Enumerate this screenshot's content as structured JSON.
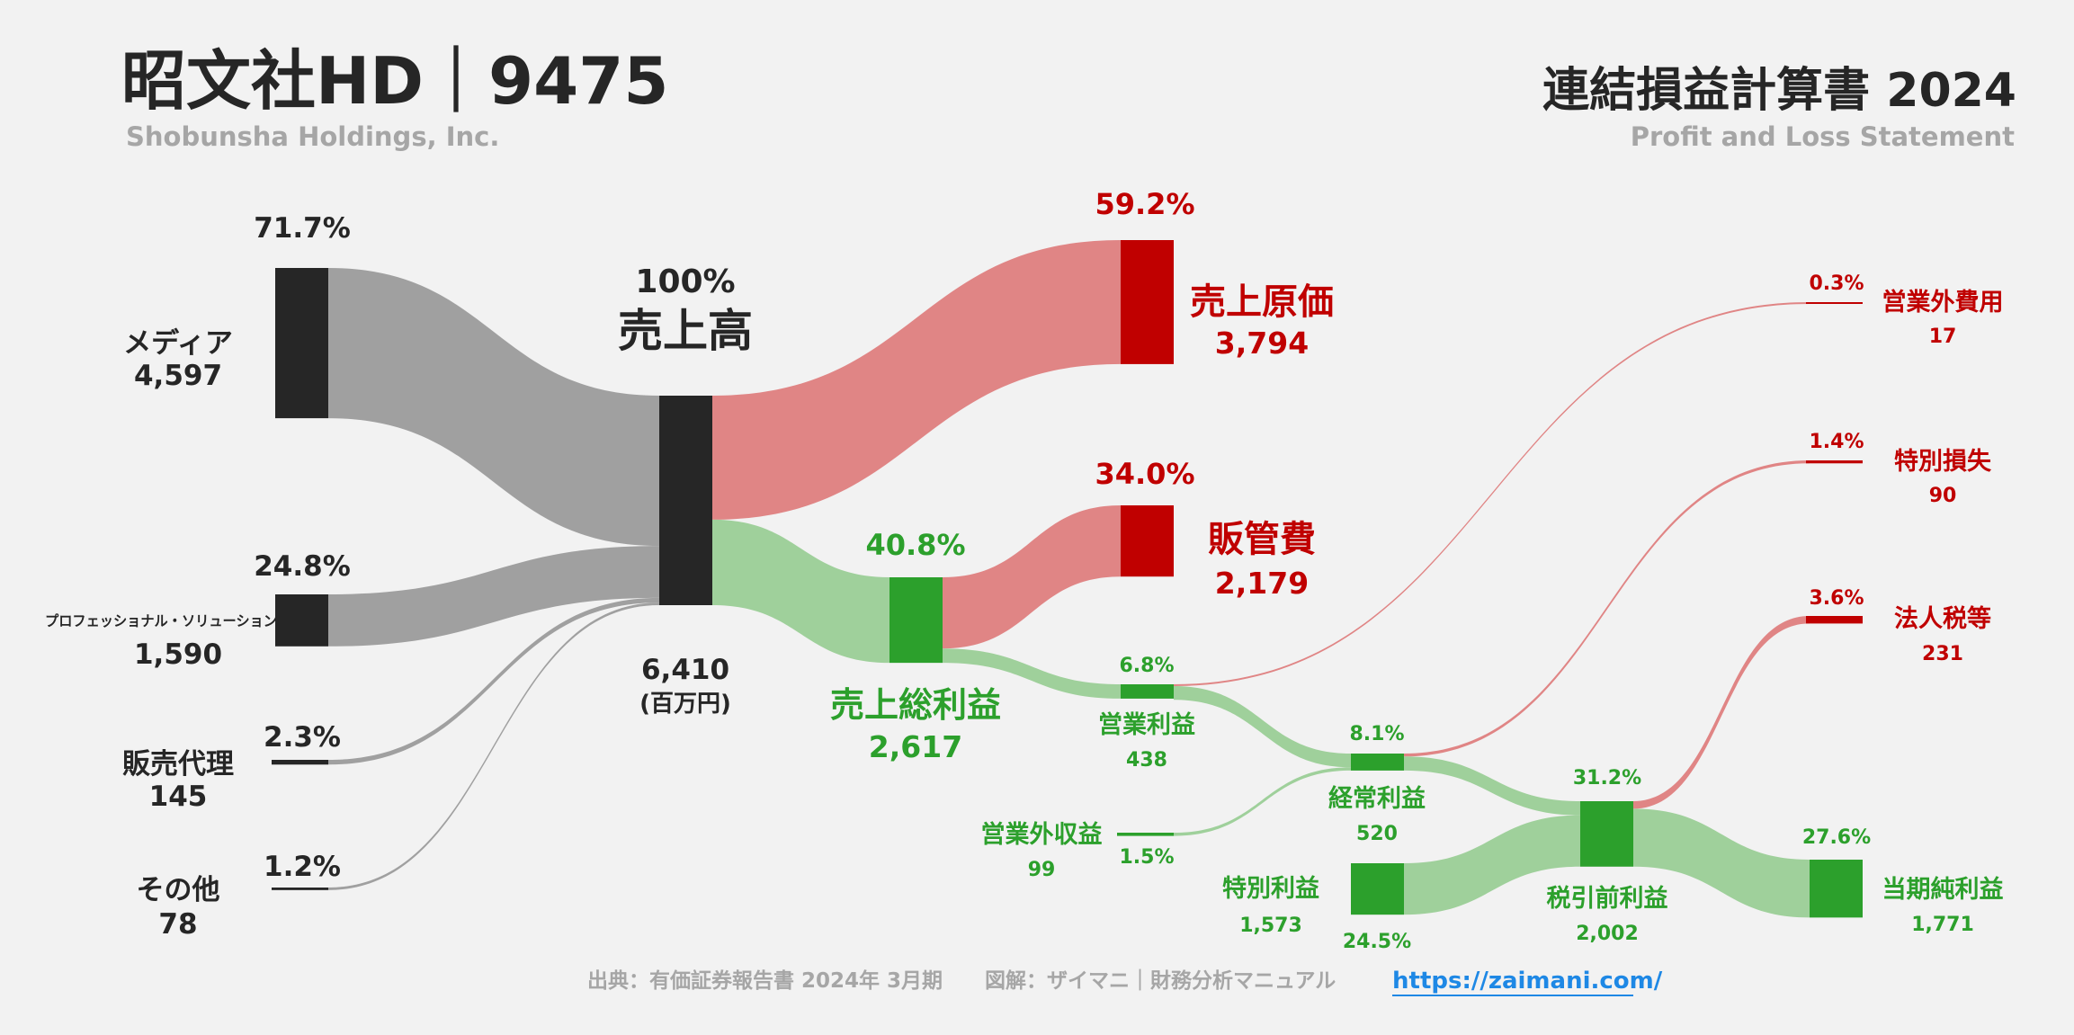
{
  "header": {
    "title": "昭文社HD｜9475",
    "subtitle": "Shobunsha Holdings, Inc.",
    "report_title": "連結損益計算書 2024",
    "report_subtitle": "Profit and Loss Statement"
  },
  "footer": {
    "source": "出典：有価証券報告書 2024年 3月期",
    "credit": "図解：ザイマニ｜財務分析マニュアル",
    "url": "https://zaimani.com/"
  },
  "colors": {
    "dark": "#262626",
    "grey_flow": "#a0a0a0",
    "red": "#c00000",
    "red_flow": "#e08585",
    "green": "#2ca02c",
    "green_flow": "#9fd09b"
  },
  "chart_data": {
    "type": "sankey",
    "unit": "(百万円)",
    "nodes": [
      {
        "id": "media",
        "label": "メディア",
        "value": "4,597",
        "pct": "71.7%",
        "color": "dark"
      },
      {
        "id": "pro",
        "label": "プロフェッショナル・ソリューション",
        "value": "1,590",
        "pct": "24.8%",
        "color": "dark"
      },
      {
        "id": "agency",
        "label": "販売代理",
        "value": "145",
        "pct": "2.3%",
        "color": "dark"
      },
      {
        "id": "other",
        "label": "その他",
        "value": "78",
        "pct": "1.2%",
        "color": "dark"
      },
      {
        "id": "revenue",
        "label": "売上高",
        "value": "6,410",
        "pct": "100%",
        "color": "dark"
      },
      {
        "id": "cogs",
        "label": "売上原価",
        "value": "3,794",
        "pct": "59.2%",
        "color": "red"
      },
      {
        "id": "gross",
        "label": "売上総利益",
        "value": "2,617",
        "pct": "40.8%",
        "color": "green"
      },
      {
        "id": "sga",
        "label": "販管費",
        "value": "2,179",
        "pct": "34.0%",
        "color": "red"
      },
      {
        "id": "op",
        "label": "営業利益",
        "value": "438",
        "pct": "6.8%",
        "color": "green"
      },
      {
        "id": "nonop_inc",
        "label": "営業外収益",
        "value": "99",
        "pct": "1.5%",
        "color": "green"
      },
      {
        "id": "nonop_exp",
        "label": "営業外費用",
        "value": "17",
        "pct": "0.3%",
        "color": "red"
      },
      {
        "id": "ordinary",
        "label": "経常利益",
        "value": "520",
        "pct": "8.1%",
        "color": "green"
      },
      {
        "id": "ext_loss",
        "label": "特別損失",
        "value": "90",
        "pct": "1.4%",
        "color": "red"
      },
      {
        "id": "ext_gain",
        "label": "特別利益",
        "value": "1,573",
        "pct": "24.5%",
        "color": "green"
      },
      {
        "id": "pretax",
        "label": "税引前利益",
        "value": "2,002",
        "pct": "31.2%",
        "color": "green"
      },
      {
        "id": "tax",
        "label": "法人税等",
        "value": "231",
        "pct": "3.6%",
        "color": "red"
      },
      {
        "id": "net",
        "label": "当期純利益",
        "value": "1,771",
        "pct": "27.6%",
        "color": "green"
      }
    ],
    "links": [
      {
        "from": "media",
        "to": "revenue",
        "value": 4597
      },
      {
        "from": "pro",
        "to": "revenue",
        "value": 1590
      },
      {
        "from": "agency",
        "to": "revenue",
        "value": 145
      },
      {
        "from": "other",
        "to": "revenue",
        "value": 78
      },
      {
        "from": "revenue",
        "to": "cogs",
        "value": 3794
      },
      {
        "from": "revenue",
        "to": "gross",
        "value": 2617
      },
      {
        "from": "gross",
        "to": "sga",
        "value": 2179
      },
      {
        "from": "gross",
        "to": "op",
        "value": 438
      },
      {
        "from": "op",
        "to": "nonop_exp",
        "value": 17
      },
      {
        "from": "op",
        "to": "ordinary",
        "value": 421
      },
      {
        "from": "nonop_inc",
        "to": "ordinary",
        "value": 99
      },
      {
        "from": "ordinary",
        "to": "ext_loss",
        "value": 90
      },
      {
        "from": "ordinary",
        "to": "pretax",
        "value": 430
      },
      {
        "from": "ext_gain",
        "to": "pretax",
        "value": 1573
      },
      {
        "from": "pretax",
        "to": "tax",
        "value": 231
      },
      {
        "from": "pretax",
        "to": "net",
        "value": 1771
      }
    ]
  }
}
